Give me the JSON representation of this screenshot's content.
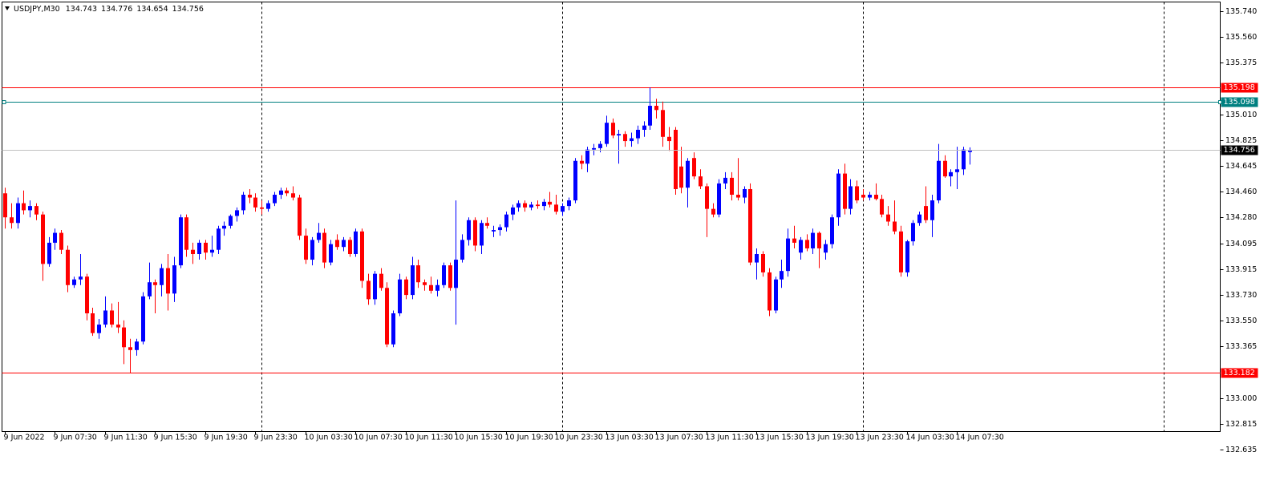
{
  "chart_data": {
    "type": "candlestick",
    "symbol": "USDJPY,M30",
    "up_color": "#0000ff",
    "down_color": "#ff0000",
    "bid_color": "#c0c0c0",
    "ylim": [
      132.635,
      135.74
    ],
    "yticks": [
      {
        "value": 135.74,
        "label": "135.740"
      },
      {
        "value": 135.56,
        "label": "135.560"
      },
      135.375,
      {
        "value": 135.01,
        "label": "135.010"
      },
      134.825,
      134.645,
      {
        "value": 134.46,
        "label": "134.460"
      },
      {
        "value": 134.28,
        "label": "134.280"
      },
      134.095,
      133.915,
      {
        "value": 133.73,
        "label": "133.730"
      },
      {
        "value": 133.55,
        "label": "133.550"
      },
      133.365,
      {
        "value": 133.0,
        "label": "133.000"
      },
      132.815,
      132.635
    ],
    "hlines": [
      {
        "value": 135.198,
        "color": "#ff0000"
      },
      {
        "value": 135.098,
        "color": "#008080"
      },
      {
        "value": 133.182,
        "color": "#ff0000"
      }
    ],
    "categories": [
      "9 Jun 2022",
      null,
      null,
      null,
      null,
      null,
      null,
      null,
      "9 Jun 07:30",
      null,
      null,
      null,
      null,
      null,
      null,
      null,
      "9 Jun 11:30",
      null,
      null,
      null,
      null,
      null,
      null,
      null,
      "9 Jun 15:30",
      null,
      null,
      null,
      null,
      null,
      null,
      null,
      "9 Jun 19:30",
      null,
      null,
      null,
      null,
      null,
      null,
      null,
      "9 Jun 23:30",
      null,
      null,
      null,
      null,
      null,
      null,
      null,
      "10 Jun 03:30",
      null,
      null,
      null,
      null,
      null,
      null,
      null,
      "10 Jun 07:30",
      null,
      null,
      null,
      null,
      null,
      null,
      null,
      "10 Jun 11:30",
      null,
      null,
      null,
      null,
      null,
      null,
      null,
      "10 Jun 15:30",
      null,
      null,
      null,
      null,
      null,
      null,
      null,
      "10 Jun 19:30",
      null,
      null,
      null,
      null,
      null,
      null,
      null,
      "10 Jun 23:30",
      null,
      null,
      null,
      null,
      null,
      null,
      null,
      "13 Jun 03:30",
      null,
      null,
      null,
      null,
      null,
      null,
      null,
      "13 Jun 07:30",
      null,
      null,
      null,
      null,
      null,
      null,
      null,
      "13 Jun 11:30",
      null,
      null,
      null,
      null,
      null,
      null,
      null,
      "13 Jun 15:30",
      null,
      null,
      null,
      null,
      null,
      null,
      null,
      "13 Jun 19:30",
      null,
      null,
      null,
      null,
      null,
      null,
      null,
      "13 Jun 23:30",
      null,
      null,
      null,
      null,
      null,
      null,
      null,
      "14 Jun 03:30",
      null,
      null,
      null,
      null,
      null,
      null,
      null,
      "14 Jun 07:30",
      null,
      null
    ],
    "open": [
      134.45,
      134.28,
      134.24,
      134.38,
      134.33,
      134.36,
      134.3,
      133.95,
      134.1,
      134.17,
      134.05,
      133.8,
      133.84,
      133.86,
      133.6,
      133.46,
      133.52,
      133.62,
      133.52,
      133.5,
      133.36,
      133.34,
      133.4,
      133.72,
      133.82,
      133.8,
      133.92,
      133.74,
      133.94,
      134.28,
      134.05,
      134.02,
      134.1,
      134.03,
      134.05,
      134.2,
      134.22,
      134.29,
      134.33,
      134.44,
      134.42,
      134.35,
      134.34,
      134.38,
      134.44,
      134.47,
      134.45,
      134.42,
      134.15,
      133.98,
      134.12,
      134.17,
      133.96,
      134.12,
      134.07,
      134.12,
      134.02,
      134.18,
      133.83,
      133.7,
      133.88,
      133.78,
      133.38,
      133.6,
      133.84,
      133.73,
      133.94,
      133.82,
      133.8,
      133.76,
      133.8,
      133.94,
      133.78,
      133.98,
      134.12,
      134.26,
      134.08,
      134.24,
      134.18,
      134.19,
      134.21,
      134.3,
      134.35,
      134.38,
      134.35,
      134.37,
      134.36,
      134.39,
      134.37,
      134.32,
      134.36,
      134.4,
      134.68,
      134.66,
      134.76,
      134.77,
      134.8,
      134.95,
      134.86,
      134.87,
      134.82,
      134.84,
      134.9,
      134.93,
      135.07,
      135.04,
      134.85,
      134.9,
      134.64,
      134.49,
      134.7,
      134.57,
      134.5,
      134.34,
      134.3,
      134.52,
      134.56,
      134.44,
      134.42,
      134.48,
      133.96,
      134.02,
      133.89,
      133.62,
      133.84,
      133.9,
      134.13,
      134.03,
      134.12,
      134.06,
      134.17,
      134.03,
      134.09,
      134.28,
      134.59,
      134.34,
      134.5,
      134.44,
      134.42,
      134.44,
      134.41,
      134.3,
      134.25,
      134.18,
      133.89,
      134.11,
      134.24,
      134.36,
      134.26,
      134.4,
      134.68,
      134.57,
      134.6,
      134.62,
      134.743
    ],
    "high": [
      134.49,
      134.38,
      134.42,
      134.47,
      134.4,
      134.38,
      134.32,
      134.14,
      134.2,
      134.19,
      134.08,
      133.86,
      134.02,
      133.88,
      133.64,
      133.56,
      133.72,
      133.67,
      133.68,
      133.55,
      133.42,
      133.42,
      133.75,
      133.96,
      133.84,
      133.95,
      134.02,
      134.0,
      134.3,
      134.3,
      134.1,
      134.12,
      134.12,
      134.15,
      134.22,
      134.25,
      134.3,
      134.35,
      134.46,
      134.48,
      134.45,
      134.4,
      134.4,
      134.46,
      134.49,
      134.49,
      134.5,
      134.44,
      134.2,
      134.14,
      134.24,
      134.2,
      134.12,
      134.16,
      134.14,
      134.14,
      134.2,
      134.2,
      133.88,
      133.9,
      133.92,
      133.82,
      133.62,
      133.88,
      133.86,
      134.0,
      133.98,
      133.84,
      133.86,
      133.84,
      133.96,
      133.96,
      134.4,
      134.16,
      134.28,
      134.28,
      134.26,
      134.28,
      134.22,
      134.23,
      134.32,
      134.37,
      134.4,
      134.4,
      134.39,
      134.4,
      134.41,
      134.46,
      134.44,
      134.38,
      134.42,
      134.7,
      134.72,
      134.78,
      134.8,
      134.82,
      135.0,
      134.98,
      134.9,
      134.89,
      134.88,
      134.93,
      134.96,
      135.2,
      135.12,
      135.1,
      134.92,
      134.92,
      134.78,
      134.7,
      134.74,
      134.62,
      134.52,
      134.38,
      134.55,
      134.6,
      134.6,
      134.7,
      134.5,
      134.52,
      134.06,
      134.04,
      133.92,
      133.86,
      133.98,
      134.2,
      134.22,
      134.14,
      134.16,
      134.2,
      134.18,
      134.12,
      134.3,
      134.62,
      134.66,
      134.55,
      134.54,
      134.48,
      134.46,
      134.52,
      134.44,
      134.36,
      134.4,
      134.22,
      134.12,
      134.26,
      134.32,
      134.5,
      134.44,
      134.8,
      134.72,
      134.62,
      134.78,
      134.78,
      134.776
    ],
    "low": [
      134.2,
      134.2,
      134.2,
      134.3,
      134.28,
      134.26,
      133.83,
      133.93,
      134.05,
      134.02,
      133.75,
      133.78,
      133.8,
      133.55,
      133.44,
      133.42,
      133.5,
      133.5,
      133.46,
      133.24,
      133.18,
      133.3,
      133.38,
      133.7,
      133.6,
      133.72,
      133.62,
      133.68,
      133.92,
      134.0,
      133.95,
      133.98,
      133.98,
      134.0,
      134.02,
      134.15,
      134.2,
      134.25,
      134.3,
      134.38,
      134.32,
      134.3,
      134.32,
      134.36,
      134.41,
      134.43,
      134.4,
      134.12,
      133.95,
      133.94,
      134.1,
      133.92,
      133.94,
      134.05,
      134.04,
      134.0,
      134.0,
      133.78,
      133.66,
      133.66,
      133.76,
      133.36,
      133.36,
      133.58,
      133.7,
      133.7,
      133.78,
      133.76,
      133.74,
      133.72,
      133.78,
      133.76,
      133.52,
      133.96,
      134.08,
      134.04,
      134.02,
      134.2,
      134.14,
      134.15,
      134.18,
      134.26,
      134.32,
      134.32,
      134.33,
      134.34,
      134.33,
      134.35,
      134.3,
      134.29,
      134.33,
      134.38,
      134.62,
      134.6,
      134.72,
      134.74,
      134.78,
      134.84,
      134.66,
      134.78,
      134.78,
      134.8,
      134.85,
      134.9,
      134.98,
      134.78,
      134.75,
      134.44,
      134.45,
      134.35,
      134.55,
      134.48,
      134.14,
      134.28,
      134.28,
      134.48,
      134.4,
      134.4,
      134.38,
      133.94,
      133.84,
      133.86,
      133.58,
      133.6,
      133.78,
      133.86,
      134.06,
      133.98,
      134.04,
      134.02,
      133.92,
      133.98,
      134.06,
      134.22,
      134.3,
      134.3,
      134.38,
      134.4,
      134.4,
      134.4,
      134.28,
      134.22,
      134.16,
      133.86,
      133.86,
      134.08,
      134.22,
      134.24,
      134.14,
      134.38,
      134.56,
      134.5,
      134.48,
      134.58,
      134.654
    ],
    "close": [
      134.28,
      134.24,
      134.38,
      134.33,
      134.36,
      134.3,
      133.95,
      134.1,
      134.17,
      134.05,
      133.8,
      133.84,
      133.86,
      133.6,
      133.46,
      133.52,
      133.62,
      133.52,
      133.5,
      133.36,
      133.34,
      133.4,
      133.72,
      133.82,
      133.8,
      133.92,
      133.74,
      133.94,
      134.28,
      134.05,
      134.02,
      134.1,
      134.03,
      134.05,
      134.2,
      134.22,
      134.29,
      134.33,
      134.44,
      134.42,
      134.35,
      134.34,
      134.38,
      134.44,
      134.47,
      134.45,
      134.42,
      134.15,
      133.98,
      134.12,
      134.17,
      133.96,
      134.09,
      134.07,
      134.12,
      134.02,
      134.18,
      133.83,
      133.7,
      133.88,
      133.78,
      133.38,
      133.6,
      133.84,
      133.73,
      133.94,
      133.82,
      133.8,
      133.76,
      133.8,
      133.94,
      133.78,
      133.98,
      134.12,
      134.26,
      134.08,
      134.24,
      134.22,
      134.19,
      134.21,
      134.3,
      134.35,
      134.38,
      134.35,
      134.37,
      134.36,
      134.39,
      134.37,
      134.32,
      134.36,
      134.4,
      134.68,
      134.66,
      134.76,
      134.77,
      134.8,
      134.95,
      134.86,
      134.87,
      134.82,
      134.84,
      134.9,
      134.93,
      135.07,
      135.04,
      134.85,
      134.82,
      134.48,
      134.49,
      134.68,
      134.57,
      134.5,
      134.34,
      134.3,
      134.52,
      134.56,
      134.44,
      134.42,
      134.48,
      133.96,
      134.02,
      133.89,
      133.62,
      133.84,
      133.9,
      134.13,
      134.1,
      134.12,
      134.06,
      134.17,
      134.06,
      134.09,
      134.28,
      134.59,
      134.34,
      134.5,
      134.4,
      134.42,
      134.44,
      134.41,
      134.3,
      134.25,
      134.18,
      133.89,
      134.11,
      134.24,
      134.3,
      134.26,
      134.4,
      134.68,
      134.57,
      134.6,
      134.62,
      134.76,
      134.756
    ]
  }
}
